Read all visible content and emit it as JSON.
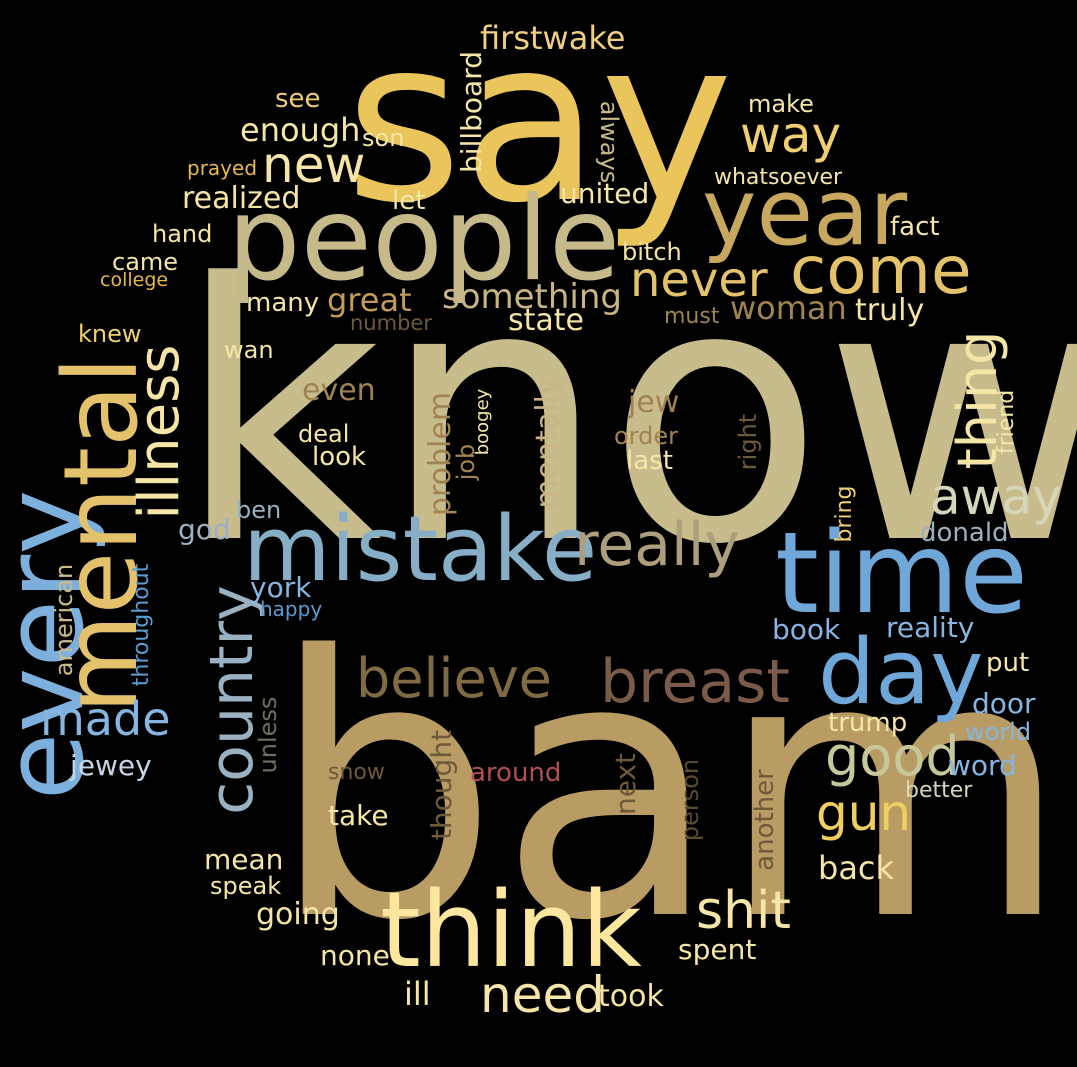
{
  "words": [
    {
      "text": "know",
      "color": "#c9bc8c"
    },
    {
      "text": "bam",
      "color": "#b99c63"
    },
    {
      "text": "say",
      "color": "#e9c55c"
    },
    {
      "text": "people",
      "color": "#c6b98a"
    },
    {
      "text": "time",
      "color": "#6ea7d8"
    },
    {
      "text": "year",
      "color": "#c8a85e"
    },
    {
      "text": "think",
      "color": "#fde79e"
    },
    {
      "text": "mistake",
      "color": "#86aec6"
    },
    {
      "text": "every",
      "color": "#7eb0de"
    },
    {
      "text": "mental",
      "color": "#e4c26c"
    },
    {
      "text": "day",
      "color": "#6ea7d8"
    },
    {
      "text": "come",
      "color": "#e4c26c"
    },
    {
      "text": "breast",
      "color": "#7a5a49"
    },
    {
      "text": "believe",
      "color": "#7f6a44"
    },
    {
      "text": "really",
      "color": "#ad9f7e"
    },
    {
      "text": "country",
      "color": "#9ab1c2"
    },
    {
      "text": "illness",
      "color": "#f5e6a8"
    },
    {
      "text": "way",
      "color": "#f0cf72"
    },
    {
      "text": "new",
      "color": "#f5e6a8"
    },
    {
      "text": "never",
      "color": "#e4c26c"
    },
    {
      "text": "good",
      "color": "#c6c79b"
    },
    {
      "text": "away",
      "color": "#d6d6ba"
    },
    {
      "text": "thing",
      "color": "#f5e6a8"
    },
    {
      "text": "need",
      "color": "#f5e6a8"
    },
    {
      "text": "shit",
      "color": "#f5e6a8"
    },
    {
      "text": "gun",
      "color": "#f0cf60"
    },
    {
      "text": "made",
      "color": "#86b5e2"
    },
    {
      "text": "firstwake",
      "color": "#f0d080"
    },
    {
      "text": "something",
      "color": "#c9b483"
    },
    {
      "text": "great",
      "color": "#c29a5b"
    },
    {
      "text": "woman",
      "color": "#a08353"
    },
    {
      "text": "state",
      "color": "#f5e6a8"
    },
    {
      "text": "realized",
      "color": "#f5e6a8"
    },
    {
      "text": "enough",
      "color": "#f5e6a8"
    },
    {
      "text": "united",
      "color": "#f5e6a8"
    },
    {
      "text": "billboard",
      "color": "#f5e6a8"
    },
    {
      "text": "always",
      "color": "#c6b98a"
    },
    {
      "text": "son",
      "color": "#f5e6a8"
    },
    {
      "text": "see",
      "color": "#f0cf72"
    },
    {
      "text": "make",
      "color": "#f5e6a8"
    },
    {
      "text": "whatsoever",
      "color": "#f5e6a8"
    },
    {
      "text": "prayed",
      "color": "#e6b94c"
    },
    {
      "text": "let",
      "color": "#f5e6a8"
    },
    {
      "text": "hand",
      "color": "#f5e6a8"
    },
    {
      "text": "fact",
      "color": "#f5e6a8"
    },
    {
      "text": "came",
      "color": "#f5e6a8"
    },
    {
      "text": "bitch",
      "color": "#f5e6a8"
    },
    {
      "text": "college",
      "color": "#e6b94c"
    },
    {
      "text": "many",
      "color": "#f5e6a8"
    },
    {
      "text": "truly",
      "color": "#f5e6a8"
    },
    {
      "text": "number",
      "color": "#6e5a3a"
    },
    {
      "text": "must",
      "color": "#a08353"
    },
    {
      "text": "knew",
      "color": "#f0cf72"
    },
    {
      "text": "wan",
      "color": "#f5e6a8"
    },
    {
      "text": "even",
      "color": "#a08353"
    },
    {
      "text": "problem",
      "color": "#a08353"
    },
    {
      "text": "job",
      "color": "#a08353"
    },
    {
      "text": "boogey",
      "color": "#f5e6a8"
    },
    {
      "text": "mentally",
      "color": "#c9b483"
    },
    {
      "text": "jew",
      "color": "#a08353"
    },
    {
      "text": "order",
      "color": "#a08353"
    },
    {
      "text": "last",
      "color": "#f5e6a8"
    },
    {
      "text": "right",
      "color": "#6e5a3a"
    },
    {
      "text": "friend",
      "color": "#f5e6a8"
    },
    {
      "text": "deal",
      "color": "#f5e6a8"
    },
    {
      "text": "look",
      "color": "#f5e6a8"
    },
    {
      "text": "bring",
      "color": "#f0cf72"
    },
    {
      "text": "god",
      "color": "#9ab1c2"
    },
    {
      "text": "ben",
      "color": "#9ab1c2"
    },
    {
      "text": "donald",
      "color": "#9ab1c2"
    },
    {
      "text": "york",
      "color": "#86b5e2"
    },
    {
      "text": "happy",
      "color": "#5b9bd5"
    },
    {
      "text": "american",
      "color": "#c9bc8c"
    },
    {
      "text": "throughout",
      "color": "#5b9bd5"
    },
    {
      "text": "book",
      "color": "#86b5e2"
    },
    {
      "text": "reality",
      "color": "#86b5e2"
    },
    {
      "text": "put",
      "color": "#f5e6a8"
    },
    {
      "text": "door",
      "color": "#86b5e2"
    },
    {
      "text": "trump",
      "color": "#f5e6a8"
    },
    {
      "text": "world",
      "color": "#86b5e2"
    },
    {
      "text": "word",
      "color": "#86b5e2"
    },
    {
      "text": "better",
      "color": "#d6d6ba"
    },
    {
      "text": "jewey",
      "color": "#c6d6e6"
    },
    {
      "text": "unless",
      "color": "#6e6e60"
    },
    {
      "text": "snow",
      "color": "#6e5a3a"
    },
    {
      "text": "around",
      "color": "#b05050"
    },
    {
      "text": "thought",
      "color": "#6e5a3a"
    },
    {
      "text": "next",
      "color": "#6e5a3a"
    },
    {
      "text": "person",
      "color": "#5a4a30"
    },
    {
      "text": "another",
      "color": "#6e5a3a"
    },
    {
      "text": "take",
      "color": "#f5e6a8"
    },
    {
      "text": "back",
      "color": "#f5e6a8"
    },
    {
      "text": "mean",
      "color": "#f5e6a8"
    },
    {
      "text": "speak",
      "color": "#f5e6a8"
    },
    {
      "text": "going",
      "color": "#f5e6a8"
    },
    {
      "text": "none",
      "color": "#f5e6a8"
    },
    {
      "text": "spent",
      "color": "#f5e6a8"
    },
    {
      "text": "ill",
      "color": "#f5e6a8"
    },
    {
      "text": "took",
      "color": "#f5e6a8"
    }
  ]
}
